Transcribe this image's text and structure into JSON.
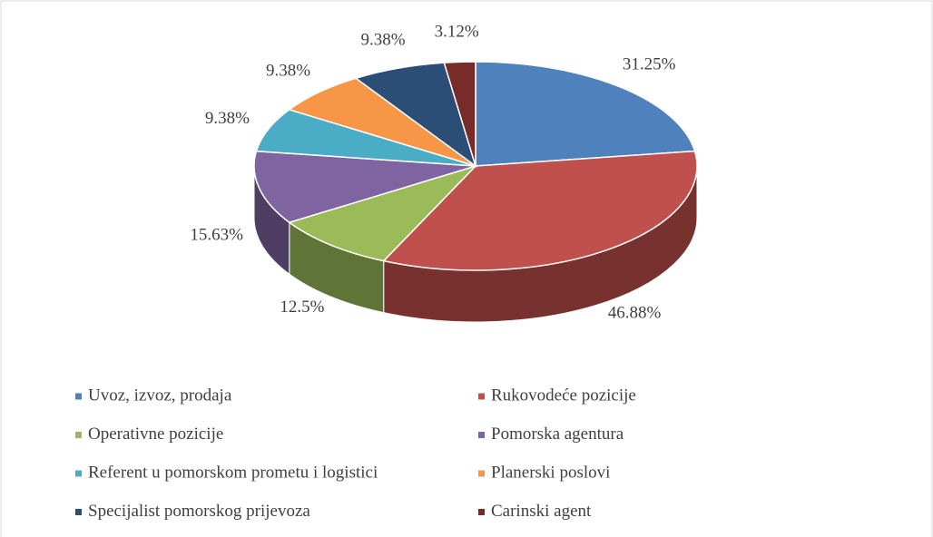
{
  "chart_data": {
    "type": "pie",
    "categories": [
      "Uvoz, izvoz, prodaja",
      "Rukovodeće pozicije",
      "Operativne pozicije",
      "Pomorska agentura",
      "Referent u pomorskom prometu i logistici",
      "Planerski poslovi",
      "Specijalist pomorskog prijevoza",
      "Carinski agent"
    ],
    "values": [
      31.25,
      46.88,
      12.5,
      15.63,
      9.38,
      9.38,
      9.38,
      3.12
    ],
    "value_labels": [
      "31.25%",
      "46.88%",
      "12.5%",
      "15.63%",
      "9.38%",
      "9.38%",
      "9.38%",
      "3.12%"
    ],
    "colors": [
      "#4f81bd",
      "#c0504d",
      "#9bbb59",
      "#8064a2",
      "#4bacc6",
      "#f79646",
      "#2c4d75",
      "#772c2a"
    ],
    "legend": "bottom"
  }
}
